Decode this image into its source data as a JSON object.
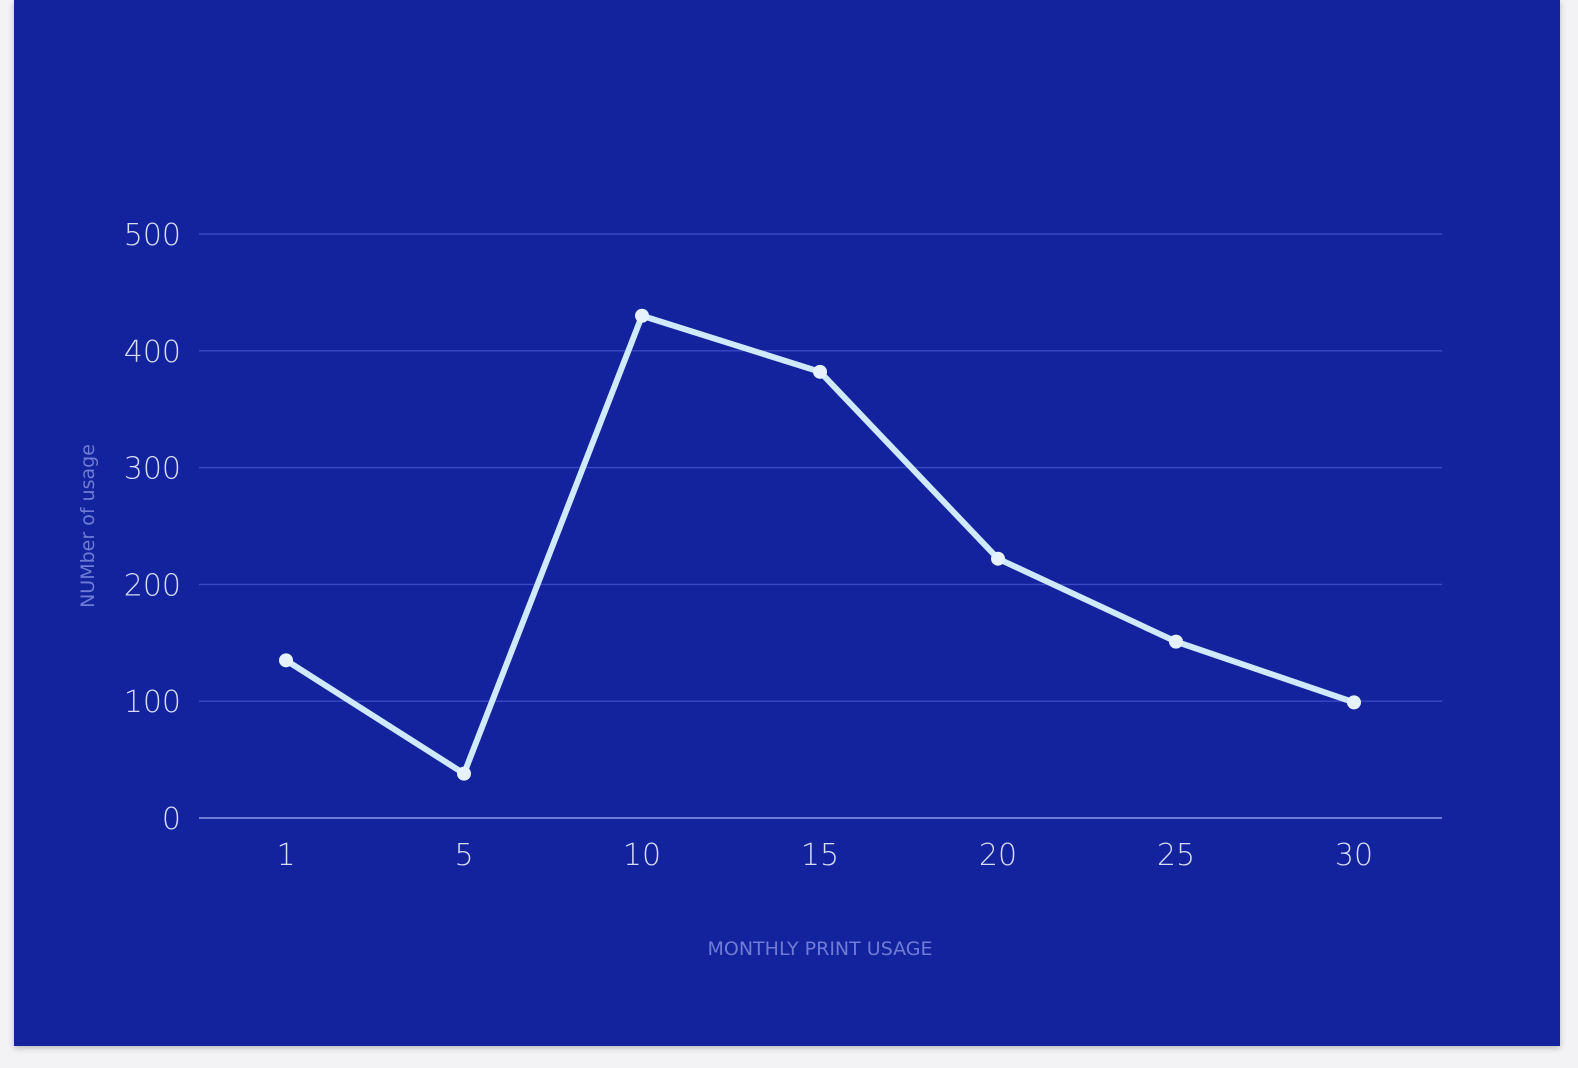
{
  "colors": {
    "background": "#13239d",
    "gridline": "#3a49c4",
    "baseline": "#8c98e6",
    "tick_label": "#d7dcf7",
    "axis_title": "#6f7bd6",
    "series_line": "#cfe9ff",
    "series_point": "#e6f3ff"
  },
  "chart_data": {
    "type": "line",
    "title": "",
    "xlabel": "MONTHLY PRINT USAGE",
    "ylabel": "NUMber of usage",
    "categories": [
      "1",
      "5",
      "10",
      "15",
      "20",
      "25",
      "30"
    ],
    "series": [
      {
        "values": [
          135,
          38,
          430,
          382,
          222,
          151,
          99
        ]
      }
    ],
    "yticks": [
      0,
      100,
      200,
      300,
      400,
      500
    ],
    "ylim": [
      0,
      500
    ],
    "grid": true,
    "legend": "none"
  }
}
